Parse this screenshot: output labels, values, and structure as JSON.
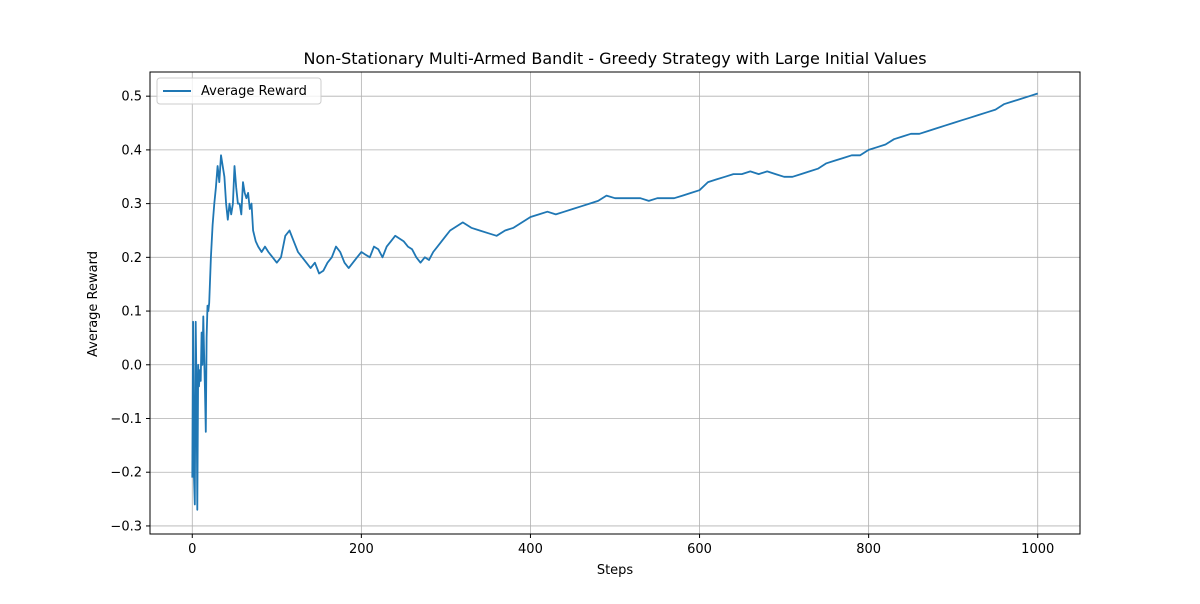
{
  "chart_data": {
    "type": "line",
    "title": "Non-Stationary Multi-Armed Bandit - Greedy Strategy with Large Initial Values",
    "xlabel": "Steps",
    "ylabel": "Average Reward",
    "xlim": [
      -50,
      1050
    ],
    "ylim": [
      -0.315,
      0.545
    ],
    "xticks": [
      0,
      200,
      400,
      600,
      800,
      1000
    ],
    "xtick_labels": [
      "0",
      "200",
      "400",
      "600",
      "800",
      "1000"
    ],
    "yticks": [
      -0.3,
      -0.2,
      -0.1,
      0.0,
      0.1,
      0.2,
      0.3,
      0.4,
      0.5
    ],
    "ytick_labels": [
      "−0.3",
      "−0.2",
      "−0.1",
      "0.0",
      "0.1",
      "0.2",
      "0.3",
      "0.4",
      "0.5"
    ],
    "grid": true,
    "legend": "upper-left",
    "series_color": "#1f77b4",
    "series": [
      {
        "name": "Average Reward",
        "x": [
          0,
          1,
          2,
          3,
          4,
          5,
          6,
          7,
          8,
          9,
          10,
          11,
          12,
          13,
          14,
          15,
          16,
          17,
          18,
          19,
          20,
          22,
          24,
          26,
          28,
          30,
          32,
          34,
          36,
          38,
          40,
          42,
          44,
          46,
          48,
          50,
          52,
          54,
          56,
          58,
          60,
          62,
          64,
          66,
          68,
          70,
          72,
          75,
          78,
          82,
          86,
          90,
          95,
          100,
          105,
          110,
          115,
          120,
          125,
          130,
          135,
          140,
          145,
          150,
          155,
          160,
          165,
          170,
          175,
          180,
          185,
          190,
          195,
          200,
          205,
          210,
          215,
          220,
          225,
          230,
          235,
          240,
          245,
          250,
          255,
          260,
          265,
          270,
          275,
          280,
          285,
          290,
          295,
          300,
          305,
          310,
          320,
          330,
          340,
          350,
          360,
          370,
          380,
          390,
          400,
          410,
          420,
          430,
          440,
          450,
          460,
          470,
          480,
          490,
          500,
          510,
          520,
          530,
          540,
          550,
          560,
          570,
          580,
          590,
          600,
          610,
          620,
          630,
          640,
          650,
          660,
          670,
          680,
          690,
          700,
          710,
          720,
          730,
          740,
          750,
          760,
          770,
          780,
          790,
          800,
          810,
          820,
          830,
          840,
          850,
          860,
          870,
          880,
          890,
          900,
          910,
          920,
          930,
          940,
          950,
          960,
          970,
          980,
          990,
          1000
        ],
        "values": [
          -0.21,
          0.08,
          -0.21,
          -0.26,
          0.08,
          -0.04,
          -0.27,
          0.0,
          -0.04,
          -0.01,
          -0.03,
          0.06,
          0.0,
          0.09,
          0.02,
          -0.05,
          -0.125,
          0.05,
          0.11,
          0.1,
          0.115,
          0.2,
          0.26,
          0.3,
          0.33,
          0.37,
          0.34,
          0.39,
          0.37,
          0.35,
          0.3,
          0.27,
          0.3,
          0.28,
          0.3,
          0.37,
          0.33,
          0.3,
          0.3,
          0.28,
          0.34,
          0.32,
          0.31,
          0.32,
          0.29,
          0.3,
          0.25,
          0.23,
          0.22,
          0.21,
          0.22,
          0.21,
          0.2,
          0.19,
          0.2,
          0.24,
          0.25,
          0.23,
          0.21,
          0.2,
          0.19,
          0.18,
          0.19,
          0.17,
          0.175,
          0.19,
          0.2,
          0.22,
          0.21,
          0.19,
          0.18,
          0.19,
          0.2,
          0.21,
          0.205,
          0.2,
          0.22,
          0.215,
          0.2,
          0.22,
          0.23,
          0.24,
          0.235,
          0.23,
          0.22,
          0.215,
          0.2,
          0.19,
          0.2,
          0.195,
          0.21,
          0.22,
          0.23,
          0.24,
          0.25,
          0.255,
          0.265,
          0.255,
          0.25,
          0.245,
          0.24,
          0.25,
          0.255,
          0.265,
          0.275,
          0.28,
          0.285,
          0.28,
          0.285,
          0.29,
          0.295,
          0.3,
          0.305,
          0.315,
          0.31,
          0.31,
          0.31,
          0.31,
          0.305,
          0.31,
          0.31,
          0.31,
          0.315,
          0.32,
          0.325,
          0.34,
          0.345,
          0.35,
          0.355,
          0.355,
          0.36,
          0.355,
          0.36,
          0.355,
          0.35,
          0.35,
          0.355,
          0.36,
          0.365,
          0.375,
          0.38,
          0.385,
          0.39,
          0.39,
          0.4,
          0.405,
          0.41,
          0.42,
          0.425,
          0.43,
          0.43,
          0.435,
          0.44,
          0.445,
          0.45,
          0.455,
          0.46,
          0.465,
          0.47,
          0.475,
          0.485,
          0.49,
          0.495,
          0.5,
          0.505
        ]
      }
    ]
  }
}
